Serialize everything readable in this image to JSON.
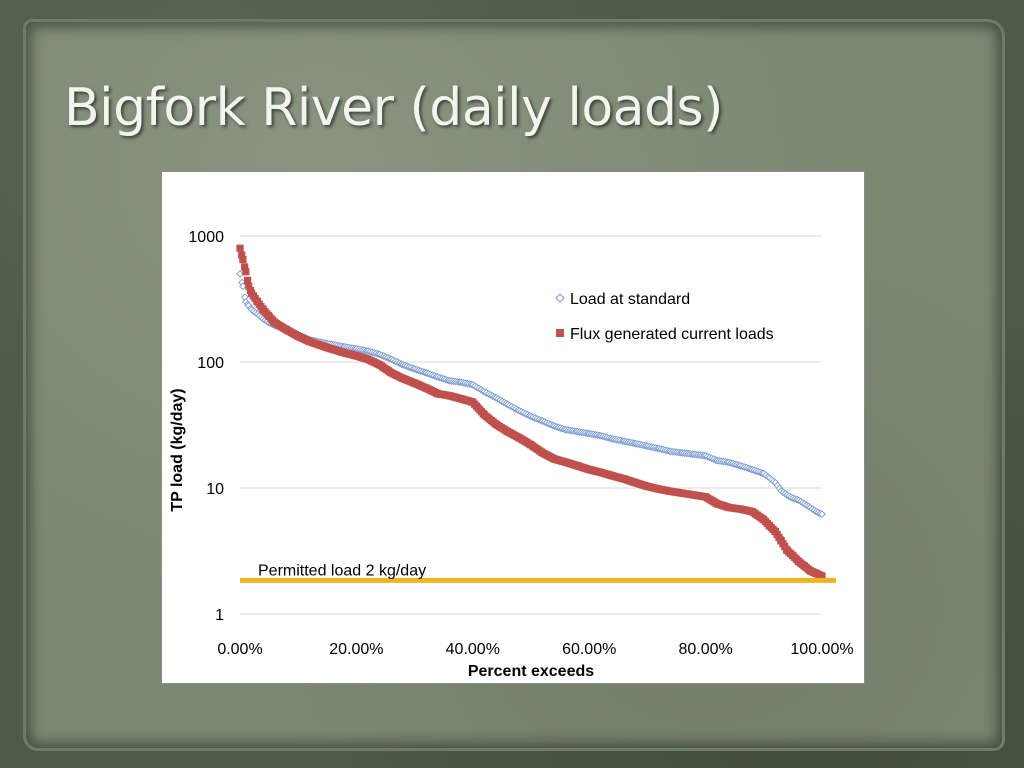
{
  "slide": {
    "title": "Bigfork River (daily loads)"
  },
  "colors": {
    "standard_marker": "#7a9bd0",
    "flux_marker": "#c0504d",
    "permitted_line": "#f0b323",
    "gridline": "#d9d9d9",
    "slide_background": "#7b8872"
  },
  "chart_data": {
    "type": "scatter",
    "title": "",
    "xlabel": "Percent exceeds",
    "ylabel": "TP load  (kg/day)",
    "xlim": [
      0,
      100
    ],
    "ylim": [
      1,
      1000
    ],
    "y_scale": "log",
    "grid": "horizontal",
    "legend_position": "top-right (inside plot)",
    "x_ticks": [
      "0.00%",
      "20.00%",
      "40.00%",
      "60.00%",
      "80.00%",
      "100.00%"
    ],
    "y_ticks": [
      "1",
      "10",
      "100",
      "1000"
    ],
    "series": [
      {
        "name": "Load at standard",
        "marker": "diamond-open",
        "x": [
          0,
          0.5,
          1,
          1.5,
          2,
          3,
          4,
          5,
          6,
          8,
          10,
          12,
          15,
          18,
          20,
          22,
          24,
          26,
          28,
          30,
          32,
          34,
          36,
          38,
          40,
          42,
          44,
          46,
          48,
          50,
          52,
          54,
          56,
          58,
          60,
          62,
          64,
          66,
          68,
          70,
          72,
          74,
          76,
          78,
          80,
          82,
          84,
          86,
          88,
          90,
          91,
          92,
          93,
          94,
          95,
          96,
          97,
          98,
          99,
          100
        ],
        "y": [
          500,
          400,
          300,
          280,
          260,
          240,
          220,
          205,
          195,
          180,
          165,
          150,
          140,
          132,
          127,
          122,
          115,
          105,
          95,
          88,
          82,
          76,
          71,
          69,
          66,
          58,
          52,
          46,
          41,
          37,
          34,
          31,
          29,
          28,
          27,
          26,
          24.5,
          23.5,
          22.5,
          21.5,
          20.5,
          19.5,
          19,
          18.5,
          18,
          16.5,
          16,
          15,
          14,
          13,
          12,
          11,
          9.5,
          8.8,
          8.3,
          8,
          7.5,
          7,
          6.5,
          6.2
        ]
      },
      {
        "name": "Flux generated current loads",
        "marker": "square",
        "x": [
          0,
          0.5,
          1,
          1.5,
          2,
          3,
          4,
          5,
          6,
          8,
          10,
          12,
          15,
          18,
          20,
          22,
          24,
          26,
          28,
          30,
          32,
          34,
          36,
          38,
          40,
          42,
          44,
          46,
          48,
          50,
          52,
          54,
          56,
          58,
          60,
          62,
          64,
          66,
          68,
          70,
          72,
          74,
          76,
          78,
          80,
          82,
          84,
          86,
          88,
          90,
          91,
          92,
          93,
          94,
          95,
          96,
          97,
          98,
          99,
          100
        ],
        "y": [
          800,
          650,
          520,
          400,
          350,
          300,
          260,
          230,
          205,
          180,
          160,
          145,
          130,
          118,
          112,
          105,
          95,
          82,
          74,
          68,
          62,
          56,
          54,
          51,
          48,
          38,
          32,
          28,
          25,
          22,
          19,
          17,
          16,
          15,
          14,
          13.3,
          12.5,
          11.8,
          11,
          10.3,
          9.8,
          9.4,
          9.1,
          8.8,
          8.5,
          7.5,
          7,
          6.8,
          6.5,
          5.6,
          5,
          4.5,
          3.8,
          3.2,
          2.9,
          2.6,
          2.4,
          2.2,
          2.1,
          2.0
        ]
      },
      {
        "name": "Permitted load 2 kg/day",
        "type": "reference-line",
        "y": 1.85
      }
    ],
    "annotations": [
      {
        "text": "Permitted load 2 kg/day"
      }
    ]
  }
}
